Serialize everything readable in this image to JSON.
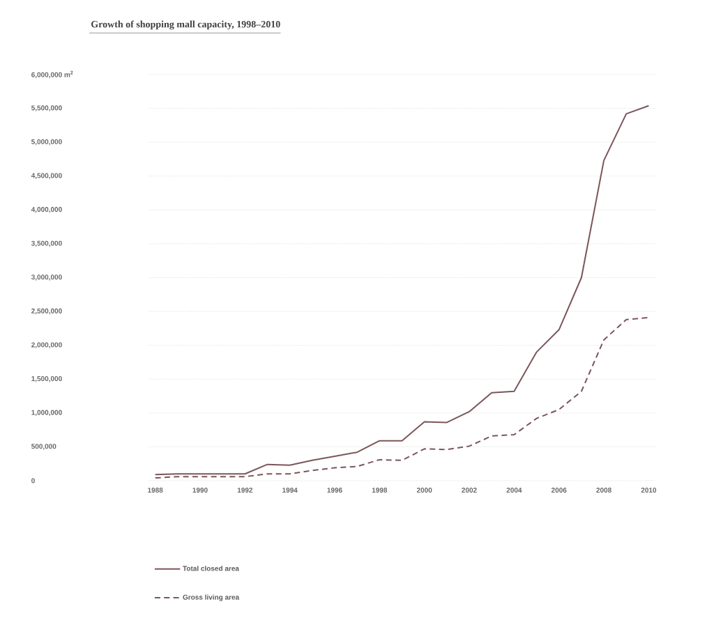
{
  "chart_data": {
    "type": "line",
    "title": "Growth of shopping mall capacity, 1998–2010",
    "x": [
      1988,
      1989,
      1990,
      1991,
      1992,
      1993,
      1994,
      1995,
      1996,
      1997,
      1998,
      1999,
      2000,
      2001,
      2002,
      2003,
      2004,
      2005,
      2006,
      2007,
      2008,
      2009,
      2010
    ],
    "series": [
      {
        "name": "Total closed area",
        "color": "#7b5559",
        "line_style": "solid",
        "values": [
          90000,
          100000,
          100000,
          100000,
          100000,
          240000,
          230000,
          300000,
          360000,
          420000,
          590000,
          590000,
          870000,
          860000,
          1020000,
          1300000,
          1320000,
          1900000,
          2230000,
          3000000,
          4730000,
          5420000,
          5540000
        ]
      },
      {
        "name": "Gross living area",
        "color": "#7b5559",
        "line_style": "dashed",
        "values": [
          40000,
          60000,
          60000,
          60000,
          60000,
          100000,
          100000,
          150000,
          190000,
          210000,
          310000,
          300000,
          470000,
          460000,
          510000,
          660000,
          680000,
          920000,
          1050000,
          1320000,
          2080000,
          2380000,
          2410000
        ]
      }
    ],
    "xlim": [
      1987.7,
      2010.3
    ],
    "xticks": [
      1988,
      1990,
      1992,
      1994,
      1996,
      1998,
      2000,
      2002,
      2004,
      2006,
      2008,
      2010
    ],
    "ylim": [
      0,
      6000000
    ],
    "yticks": [
      {
        "value": 0,
        "label": "0"
      },
      {
        "value": 500000,
        "label": "500,000"
      },
      {
        "value": 1000000,
        "label": "1,000,000"
      },
      {
        "value": 1500000,
        "label": "1,500,000"
      },
      {
        "value": 2000000,
        "label": "2,000,000"
      },
      {
        "value": 2500000,
        "label": "2,500,000"
      },
      {
        "value": 3000000,
        "label": "3,000,000"
      },
      {
        "value": 3500000,
        "label": "3,500,000"
      },
      {
        "value": 4000000,
        "label": "4,000,000"
      },
      {
        "value": 4500000,
        "label": "4,500,000"
      },
      {
        "value": 5000000,
        "label": "5,000,000"
      },
      {
        "value": 5500000,
        "label": "5,500,000"
      },
      {
        "value": 6000000,
        "label": "6,000,000 m$^{2}$"
      }
    ],
    "grid": "y",
    "legend": "bottom",
    "marker": "none"
  }
}
